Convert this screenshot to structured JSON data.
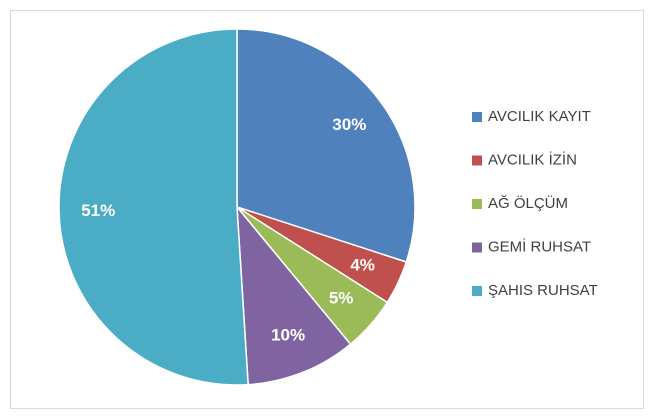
{
  "chart_data": {
    "type": "pie",
    "categories": [
      "AVCILIK KAYIT",
      "AVCILIK İZİN",
      "AĞ ÖLÇÜM",
      "GEMİ RUHSAT",
      "ŞAHIS RUHSAT"
    ],
    "values": [
      30,
      4,
      5,
      10,
      51
    ],
    "value_labels": [
      "30%",
      "4%",
      "5%",
      "10%",
      "51%"
    ],
    "colors": [
      "#4f81bd",
      "#c0504d",
      "#9bbb59",
      "#8064a2",
      "#4bacc6"
    ],
    "legend": "right"
  }
}
